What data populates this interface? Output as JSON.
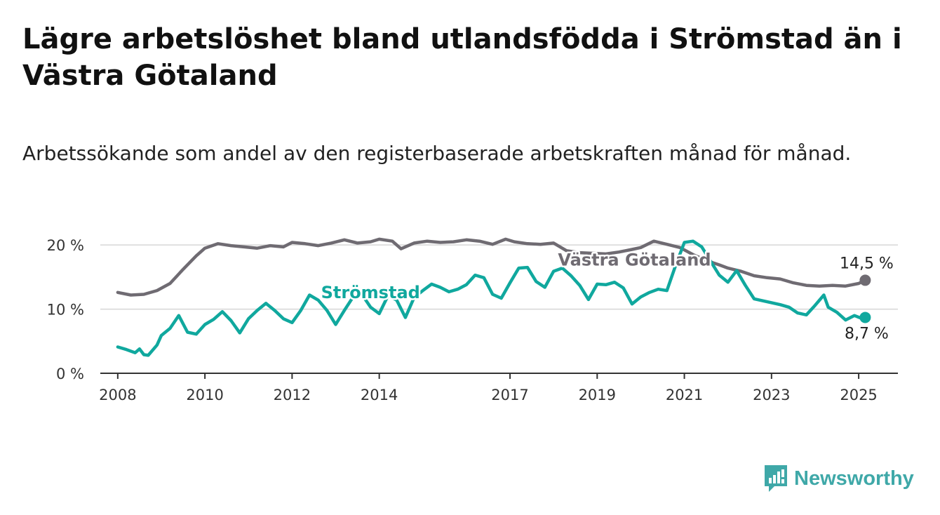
{
  "title": "Lägre arbetslöshet bland utlandsfödda i Strömstad än i Västra Götaland",
  "subtitle": "Arbetssökande som andel av den registerbaserade arbetskraften månad för månad.",
  "brand": {
    "name": "Newsworthy",
    "color": "#3fa8a8",
    "icon": "bar-chart-icon"
  },
  "chart_data": {
    "type": "line",
    "x_unit": "year",
    "xlim": [
      2007.6,
      2025.9
    ],
    "ylim": [
      0,
      21
    ],
    "y_ticks": [
      {
        "value": 0,
        "label": "0 %"
      },
      {
        "value": 10,
        "label": "10 %"
      },
      {
        "value": 20,
        "label": "20 %"
      }
    ],
    "x_ticks": [
      {
        "value": 2008,
        "label": "2008"
      },
      {
        "value": 2010,
        "label": "2010"
      },
      {
        "value": 2012,
        "label": "2012"
      },
      {
        "value": 2014,
        "label": "2014"
      },
      {
        "value": 2017,
        "label": "2017"
      },
      {
        "value": 2019,
        "label": "2019"
      },
      {
        "value": 2021,
        "label": "2021"
      },
      {
        "value": 2023,
        "label": "2023"
      },
      {
        "value": 2025,
        "label": "2025"
      }
    ],
    "grid": true,
    "series": [
      {
        "name": "Västra Götaland",
        "color": "#6f6b72",
        "last_label": "14,5 %",
        "points": [
          [
            2008.0,
            12.6
          ],
          [
            2008.3,
            12.2
          ],
          [
            2008.6,
            12.3
          ],
          [
            2008.9,
            12.9
          ],
          [
            2009.2,
            14.0
          ],
          [
            2009.5,
            16.2
          ],
          [
            2009.8,
            18.3
          ],
          [
            2010.0,
            19.5
          ],
          [
            2010.3,
            20.2
          ],
          [
            2010.6,
            19.9
          ],
          [
            2010.9,
            19.7
          ],
          [
            2011.2,
            19.5
          ],
          [
            2011.5,
            19.9
          ],
          [
            2011.8,
            19.7
          ],
          [
            2012.0,
            20.4
          ],
          [
            2012.3,
            20.2
          ],
          [
            2012.6,
            19.9
          ],
          [
            2012.9,
            20.3
          ],
          [
            2013.2,
            20.8
          ],
          [
            2013.5,
            20.3
          ],
          [
            2013.8,
            20.5
          ],
          [
            2014.0,
            20.9
          ],
          [
            2014.3,
            20.6
          ],
          [
            2014.5,
            19.4
          ],
          [
            2014.8,
            20.3
          ],
          [
            2015.1,
            20.6
          ],
          [
            2015.4,
            20.4
          ],
          [
            2015.7,
            20.5
          ],
          [
            2016.0,
            20.8
          ],
          [
            2016.3,
            20.6
          ],
          [
            2016.6,
            20.1
          ],
          [
            2016.9,
            20.9
          ],
          [
            2017.1,
            20.5
          ],
          [
            2017.4,
            20.2
          ],
          [
            2017.7,
            20.1
          ],
          [
            2018.0,
            20.3
          ],
          [
            2018.3,
            19.1
          ],
          [
            2018.6,
            18.8
          ],
          [
            2018.9,
            18.7
          ],
          [
            2019.2,
            18.6
          ],
          [
            2019.5,
            18.9
          ],
          [
            2019.8,
            19.3
          ],
          [
            2020.0,
            19.6
          ],
          [
            2020.3,
            20.6
          ],
          [
            2020.6,
            20.1
          ],
          [
            2020.9,
            19.6
          ],
          [
            2021.2,
            18.5
          ],
          [
            2021.5,
            17.6
          ],
          [
            2021.8,
            16.9
          ],
          [
            2022.0,
            16.4
          ],
          [
            2022.3,
            15.9
          ],
          [
            2022.6,
            15.2
          ],
          [
            2022.9,
            14.9
          ],
          [
            2023.2,
            14.7
          ],
          [
            2023.5,
            14.1
          ],
          [
            2023.8,
            13.7
          ],
          [
            2024.1,
            13.6
          ],
          [
            2024.4,
            13.7
          ],
          [
            2024.7,
            13.6
          ],
          [
            2025.0,
            14.0
          ],
          [
            2025.15,
            14.5
          ]
        ]
      },
      {
        "name": "Strömstad",
        "color": "#10a89e",
        "last_label": "8,7 %",
        "points": [
          [
            2008.0,
            4.1
          ],
          [
            2008.2,
            3.7
          ],
          [
            2008.4,
            3.2
          ],
          [
            2008.5,
            3.8
          ],
          [
            2008.6,
            2.9
          ],
          [
            2008.7,
            2.8
          ],
          [
            2008.9,
            4.4
          ],
          [
            2009.0,
            5.9
          ],
          [
            2009.2,
            7.0
          ],
          [
            2009.4,
            9.0
          ],
          [
            2009.6,
            6.4
          ],
          [
            2009.8,
            6.1
          ],
          [
            2010.0,
            7.6
          ],
          [
            2010.2,
            8.4
          ],
          [
            2010.4,
            9.6
          ],
          [
            2010.6,
            8.2
          ],
          [
            2010.8,
            6.3
          ],
          [
            2011.0,
            8.5
          ],
          [
            2011.2,
            9.8
          ],
          [
            2011.4,
            10.9
          ],
          [
            2011.6,
            9.8
          ],
          [
            2011.8,
            8.5
          ],
          [
            2012.0,
            7.9
          ],
          [
            2012.2,
            9.8
          ],
          [
            2012.4,
            12.2
          ],
          [
            2012.6,
            11.4
          ],
          [
            2012.8,
            9.8
          ],
          [
            2013.0,
            7.6
          ],
          [
            2013.2,
            9.8
          ],
          [
            2013.4,
            11.9
          ],
          [
            2013.6,
            12.3
          ],
          [
            2013.8,
            10.3
          ],
          [
            2014.0,
            9.3
          ],
          [
            2014.2,
            12.1
          ],
          [
            2014.4,
            11.4
          ],
          [
            2014.6,
            8.7
          ],
          [
            2014.8,
            11.8
          ],
          [
            2015.0,
            12.9
          ],
          [
            2015.2,
            13.9
          ],
          [
            2015.4,
            13.4
          ],
          [
            2015.6,
            12.7
          ],
          [
            2015.8,
            13.1
          ],
          [
            2016.0,
            13.8
          ],
          [
            2016.2,
            15.3
          ],
          [
            2016.4,
            14.9
          ],
          [
            2016.6,
            12.3
          ],
          [
            2016.8,
            11.7
          ],
          [
            2017.0,
            14.1
          ],
          [
            2017.2,
            16.4
          ],
          [
            2017.4,
            16.5
          ],
          [
            2017.6,
            14.3
          ],
          [
            2017.8,
            13.4
          ],
          [
            2018.0,
            15.9
          ],
          [
            2018.2,
            16.4
          ],
          [
            2018.4,
            15.2
          ],
          [
            2018.6,
            13.7
          ],
          [
            2018.8,
            11.5
          ],
          [
            2019.0,
            13.9
          ],
          [
            2019.2,
            13.8
          ],
          [
            2019.4,
            14.2
          ],
          [
            2019.6,
            13.3
          ],
          [
            2019.8,
            10.8
          ],
          [
            2020.0,
            11.9
          ],
          [
            2020.2,
            12.6
          ],
          [
            2020.4,
            13.1
          ],
          [
            2020.6,
            12.9
          ],
          [
            2020.8,
            16.8
          ],
          [
            2021.0,
            20.4
          ],
          [
            2021.2,
            20.6
          ],
          [
            2021.4,
            19.7
          ],
          [
            2021.6,
            17.5
          ],
          [
            2021.8,
            15.3
          ],
          [
            2022.0,
            14.2
          ],
          [
            2022.2,
            16.0
          ],
          [
            2022.4,
            13.7
          ],
          [
            2022.6,
            11.6
          ],
          [
            2022.8,
            11.3
          ],
          [
            2023.0,
            11.0
          ],
          [
            2023.2,
            10.7
          ],
          [
            2023.4,
            10.3
          ],
          [
            2023.6,
            9.4
          ],
          [
            2023.8,
            9.1
          ],
          [
            2024.0,
            10.6
          ],
          [
            2024.2,
            12.2
          ],
          [
            2024.3,
            10.3
          ],
          [
            2024.5,
            9.5
          ],
          [
            2024.7,
            8.3
          ],
          [
            2024.9,
            9.0
          ],
          [
            2025.05,
            8.6
          ],
          [
            2025.15,
            8.7
          ]
        ]
      }
    ]
  }
}
